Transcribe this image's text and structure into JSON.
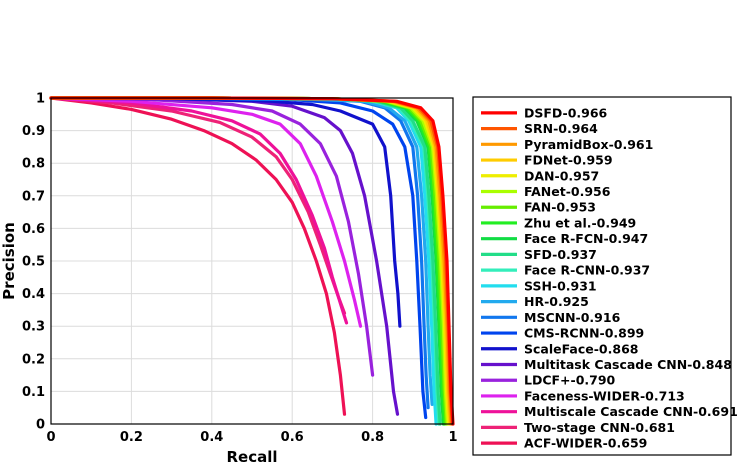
{
  "chart_data": {
    "type": "line",
    "title": "",
    "xlabel": "Recall",
    "ylabel": "Precision",
    "xlim": [
      0,
      1
    ],
    "ylim": [
      0,
      1
    ],
    "xticks": [
      "0",
      "0.2",
      "0.4",
      "0.6",
      "0.8",
      "1"
    ],
    "yticks": [
      "0",
      "0.1",
      "0.2",
      "0.3",
      "0.4",
      "0.5",
      "0.6",
      "0.7",
      "0.8",
      "0.9",
      "1"
    ],
    "grid": true,
    "legend_position": "right",
    "series": [
      {
        "name": "DSFD-0.966",
        "color": "#ff0000",
        "x": [
          0,
          0.4,
          0.7,
          0.86,
          0.92,
          0.95,
          0.965,
          0.975,
          0.985,
          0.99,
          0.995,
          1.0
        ],
        "y": [
          1,
          1,
          0.998,
          0.99,
          0.97,
          0.93,
          0.85,
          0.7,
          0.5,
          0.3,
          0.1,
          0.0
        ]
      },
      {
        "name": "SRN-0.964",
        "color": "#ff5500",
        "x": [
          0,
          0.4,
          0.7,
          0.855,
          0.915,
          0.945,
          0.962,
          0.972,
          0.982,
          0.988,
          0.993,
          0.998
        ],
        "y": [
          1,
          1,
          0.998,
          0.99,
          0.97,
          0.93,
          0.85,
          0.7,
          0.5,
          0.3,
          0.1,
          0.0
        ]
      },
      {
        "name": "PyramidBox-0.961",
        "color": "#ff9900",
        "x": [
          0,
          0.4,
          0.7,
          0.85,
          0.91,
          0.94,
          0.958,
          0.968,
          0.978,
          0.985,
          0.99,
          0.995
        ],
        "y": [
          1,
          1,
          0.998,
          0.99,
          0.97,
          0.93,
          0.85,
          0.7,
          0.5,
          0.3,
          0.1,
          0.0
        ]
      },
      {
        "name": "FDNet-0.959",
        "color": "#ffcc00",
        "x": [
          0,
          0.4,
          0.7,
          0.845,
          0.905,
          0.935,
          0.955,
          0.965,
          0.975,
          0.982,
          0.987,
          0.992
        ],
        "y": [
          1,
          1,
          0.998,
          0.99,
          0.97,
          0.93,
          0.85,
          0.7,
          0.5,
          0.3,
          0.1,
          0.0
        ]
      },
      {
        "name": "DAN-0.957",
        "color": "#eeee00",
        "x": [
          0,
          0.4,
          0.7,
          0.84,
          0.9,
          0.93,
          0.952,
          0.962,
          0.972,
          0.979,
          0.984,
          0.989
        ],
        "y": [
          1,
          1,
          0.998,
          0.99,
          0.97,
          0.93,
          0.85,
          0.7,
          0.5,
          0.3,
          0.1,
          0.0
        ]
      },
      {
        "name": "FANet-0.956",
        "color": "#aaff00",
        "x": [
          0,
          0.4,
          0.7,
          0.835,
          0.895,
          0.925,
          0.949,
          0.959,
          0.969,
          0.976,
          0.981,
          0.986
        ],
        "y": [
          1,
          1,
          0.998,
          0.99,
          0.97,
          0.93,
          0.85,
          0.7,
          0.5,
          0.3,
          0.1,
          0.0
        ]
      },
      {
        "name": "FAN-0.953",
        "color": "#66ee00",
        "x": [
          0,
          0.4,
          0.7,
          0.83,
          0.89,
          0.92,
          0.945,
          0.955,
          0.965,
          0.972,
          0.978,
          0.983
        ],
        "y": [
          1,
          1,
          0.998,
          0.99,
          0.97,
          0.93,
          0.85,
          0.7,
          0.5,
          0.3,
          0.1,
          0.0
        ]
      },
      {
        "name": "Zhu et al.-0.949",
        "color": "#22ee22",
        "x": [
          0,
          0.4,
          0.7,
          0.825,
          0.885,
          0.915,
          0.941,
          0.951,
          0.961,
          0.968,
          0.974,
          0.979
        ],
        "y": [
          1,
          1,
          0.998,
          0.99,
          0.97,
          0.93,
          0.85,
          0.7,
          0.5,
          0.3,
          0.1,
          0.0
        ]
      },
      {
        "name": "Face R-FCN-0.947",
        "color": "#11dd44",
        "x": [
          0,
          0.4,
          0.7,
          0.82,
          0.88,
          0.91,
          0.938,
          0.948,
          0.958,
          0.965,
          0.971,
          0.976
        ],
        "y": [
          1,
          1,
          0.998,
          0.99,
          0.97,
          0.93,
          0.85,
          0.7,
          0.5,
          0.3,
          0.1,
          0.0
        ]
      },
      {
        "name": "SFD-0.937",
        "color": "#22dd88",
        "x": [
          0,
          0.4,
          0.7,
          0.81,
          0.87,
          0.9,
          0.93,
          0.94,
          0.95,
          0.957,
          0.963,
          0.968
        ],
        "y": [
          1,
          1,
          0.998,
          0.99,
          0.97,
          0.93,
          0.85,
          0.7,
          0.5,
          0.3,
          0.1,
          0.0
        ]
      },
      {
        "name": "Face R-CNN-0.937",
        "color": "#33eebb",
        "x": [
          0,
          0.4,
          0.7,
          0.805,
          0.865,
          0.895,
          0.927,
          0.937,
          0.947,
          0.954,
          0.96,
          0.965
        ],
        "y": [
          1,
          1,
          0.998,
          0.99,
          0.97,
          0.93,
          0.85,
          0.7,
          0.5,
          0.3,
          0.1,
          0.0
        ]
      },
      {
        "name": "SSH-0.931",
        "color": "#22ddee",
        "x": [
          0,
          0.4,
          0.7,
          0.8,
          0.86,
          0.89,
          0.92,
          0.93,
          0.94,
          0.947,
          0.953,
          0.958
        ],
        "y": [
          1,
          1,
          0.998,
          0.99,
          0.97,
          0.93,
          0.85,
          0.7,
          0.5,
          0.3,
          0.1,
          0.0
        ]
      },
      {
        "name": "HR-0.925",
        "color": "#22aaee",
        "x": [
          0,
          0.4,
          0.65,
          0.78,
          0.84,
          0.88,
          0.91,
          0.922,
          0.932,
          0.938,
          0.943,
          0.948
        ],
        "y": [
          1,
          0.999,
          0.996,
          0.99,
          0.97,
          0.93,
          0.85,
          0.7,
          0.5,
          0.3,
          0.15,
          0.06
        ]
      },
      {
        "name": "MSCNN-0.916",
        "color": "#1177ee",
        "x": [
          0,
          0.4,
          0.65,
          0.77,
          0.83,
          0.87,
          0.9,
          0.912,
          0.922,
          0.928,
          0.933,
          0.938
        ],
        "y": [
          1,
          0.999,
          0.996,
          0.99,
          0.97,
          0.93,
          0.85,
          0.7,
          0.5,
          0.3,
          0.15,
          0.05
        ]
      },
      {
        "name": "CMS-RCNN-0.899",
        "color": "#0044ee",
        "x": [
          0,
          0.3,
          0.6,
          0.72,
          0.8,
          0.85,
          0.88,
          0.9,
          0.91,
          0.918,
          0.925,
          0.932
        ],
        "y": [
          1,
          0.999,
          0.995,
          0.985,
          0.96,
          0.92,
          0.85,
          0.7,
          0.5,
          0.3,
          0.1,
          0.02
        ]
      },
      {
        "name": "ScaleFace-0.868",
        "color": "#1111cc",
        "x": [
          0,
          0.3,
          0.55,
          0.65,
          0.72,
          0.8,
          0.83,
          0.845,
          0.855,
          0.863,
          0.868
        ],
        "y": [
          1,
          0.998,
          0.99,
          0.98,
          0.96,
          0.92,
          0.85,
          0.7,
          0.5,
          0.4,
          0.3
        ]
      },
      {
        "name": "Multitask Cascade CNN-0.848",
        "color": "#6611cc",
        "x": [
          0,
          0.3,
          0.5,
          0.6,
          0.68,
          0.72,
          0.75,
          0.78,
          0.81,
          0.835,
          0.852,
          0.862
        ],
        "y": [
          1,
          0.998,
          0.99,
          0.975,
          0.94,
          0.9,
          0.83,
          0.7,
          0.5,
          0.3,
          0.1,
          0.03
        ]
      },
      {
        "name": "LDCF+-0.790",
        "color": "#9922dd",
        "x": [
          0,
          0.25,
          0.45,
          0.55,
          0.62,
          0.67,
          0.71,
          0.74,
          0.765,
          0.785,
          0.8
        ],
        "y": [
          1,
          0.995,
          0.98,
          0.96,
          0.92,
          0.86,
          0.76,
          0.62,
          0.46,
          0.3,
          0.15
        ]
      },
      {
        "name": "Faceness-WIDER-0.713",
        "color": "#dd22ee",
        "x": [
          0,
          0.2,
          0.4,
          0.5,
          0.57,
          0.62,
          0.66,
          0.7,
          0.73,
          0.755,
          0.77
        ],
        "y": [
          1,
          0.99,
          0.97,
          0.95,
          0.92,
          0.86,
          0.76,
          0.62,
          0.5,
          0.38,
          0.3
        ]
      },
      {
        "name": "Multiscale Cascade CNN-0.691",
        "color": "#ee1199",
        "x": [
          0,
          0.2,
          0.35,
          0.45,
          0.52,
          0.57,
          0.61,
          0.65,
          0.68,
          0.7,
          0.72,
          0.735
        ],
        "y": [
          1,
          0.985,
          0.96,
          0.93,
          0.89,
          0.83,
          0.75,
          0.64,
          0.54,
          0.45,
          0.37,
          0.31
        ]
      },
      {
        "name": "Two-stage CNN-0.681",
        "color": "#ee2277",
        "x": [
          0,
          0.15,
          0.3,
          0.42,
          0.5,
          0.56,
          0.6,
          0.64,
          0.67,
          0.695,
          0.715,
          0.73
        ],
        "y": [
          1,
          0.985,
          0.96,
          0.925,
          0.88,
          0.82,
          0.75,
          0.65,
          0.55,
          0.46,
          0.39,
          0.34
        ]
      },
      {
        "name": "ACF-WIDER-0.659",
        "color": "#ee1155",
        "x": [
          0,
          0.1,
          0.2,
          0.3,
          0.38,
          0.45,
          0.51,
          0.56,
          0.6,
          0.63,
          0.66,
          0.685,
          0.705,
          0.72,
          0.73
        ],
        "y": [
          1,
          0.985,
          0.965,
          0.935,
          0.9,
          0.86,
          0.81,
          0.75,
          0.68,
          0.6,
          0.5,
          0.4,
          0.28,
          0.15,
          0.03
        ]
      }
    ]
  }
}
